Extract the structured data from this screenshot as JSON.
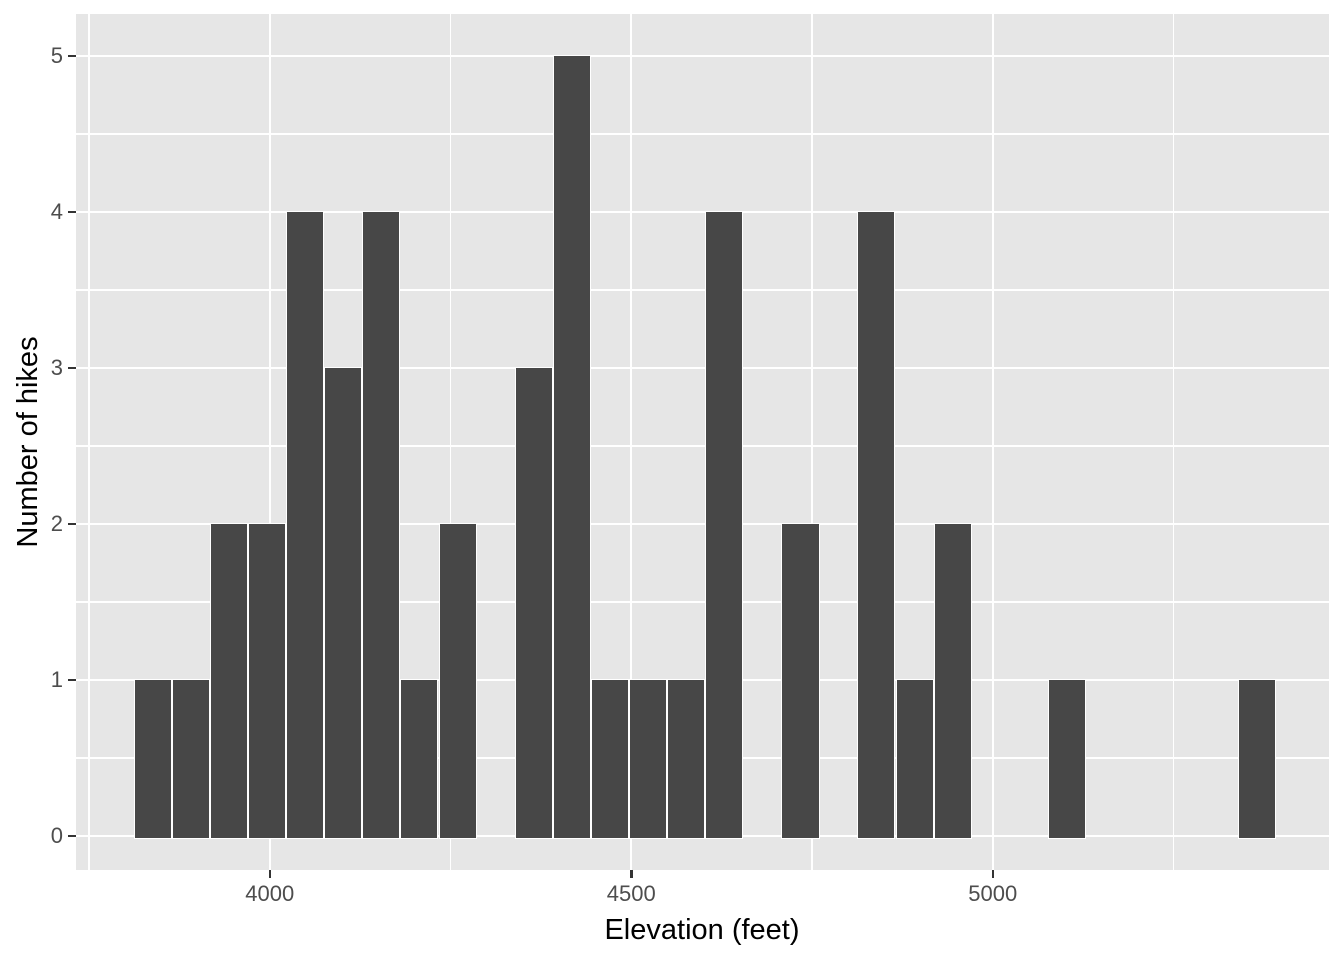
{
  "figure": {
    "background": "#FFFFFF",
    "description": "Histogram of number of hikes by elevation"
  },
  "chart_data": {
    "type": "bar",
    "variant": "histogram",
    "title": "",
    "xlabel": "Elevation (feet)",
    "ylabel": "Number of hikes",
    "legend": "none",
    "grid": "on",
    "xlim": [
      3732,
      5465
    ],
    "ylim": [
      0,
      5
    ],
    "x_tick_values": [
      4000,
      4500,
      5000
    ],
    "x_tick_labels": [
      "4000",
      "4500",
      "5000"
    ],
    "x_minor_gridlines": [
      3750,
      4250,
      4750,
      5250
    ],
    "y_tick_values": [
      0,
      1,
      2,
      3,
      4,
      5
    ],
    "y_tick_labels": [
      "0",
      "1",
      "2",
      "3",
      "4",
      "5"
    ],
    "y_minor_gridlines": [
      0.5,
      1.5,
      2.5,
      3.5,
      4.5
    ],
    "binwidth": 52.7,
    "total_hikes": 46,
    "bin_centers": [
      3838,
      3891,
      3943,
      3996,
      4049,
      4101,
      4154,
      4207,
      4260,
      4312,
      4365,
      4418,
      4470,
      4523,
      4576,
      4628,
      4681,
      4734,
      4787,
      4839,
      4892,
      4945,
      4997,
      5050,
      5103,
      5156,
      5208,
      5261,
      5314,
      5366
    ],
    "counts": [
      1,
      1,
      2,
      2,
      4,
      3,
      4,
      1,
      2,
      0,
      3,
      5,
      1,
      1,
      1,
      4,
      0,
      2,
      0,
      4,
      1,
      2,
      0,
      0,
      1,
      0,
      0,
      0,
      0,
      1
    ],
    "colors": {
      "bar_fill": "#474747",
      "bar_stroke": "#FFFFFF",
      "panel_background": "#E6E6E6",
      "gridline": "#FFFFFF",
      "tick_mark": "#333333",
      "tick_label": "#4D4D4D",
      "axis_title": "#000000"
    }
  }
}
